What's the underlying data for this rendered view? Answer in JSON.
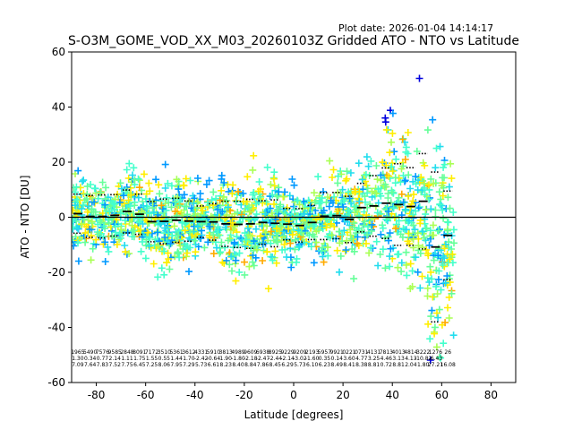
{
  "chart_data": {
    "type": "scatter",
    "title": "S-O3M_GOME_VOD_XX_M03_20260103Z Gridded ATO - NTO vs Latitude",
    "plot_date": "Plot date: 2026-01-04 14:14:17",
    "xlabel": "Latitude [degrees]",
    "ylabel": "ATO - NTO [DU]",
    "xlim": [
      -90,
      90
    ],
    "ylim": [
      -60,
      60
    ],
    "xticks": [
      -80,
      -60,
      -40,
      -20,
      0,
      20,
      40,
      60,
      80
    ],
    "yticks": [
      -60,
      -40,
      -20,
      0,
      20,
      40,
      60
    ],
    "zero_line": 0,
    "colors": {
      "blue": "#0000dd",
      "deep_sky": "#0099ff",
      "cyan": "#22ddee",
      "aqua": "#44ffcc",
      "mint": "#66ff99",
      "lime": "#aaff55",
      "yellow": "#ffee00",
      "orange": "#ffaa00"
    },
    "bin_lats": [
      -87.5,
      -82.5,
      -77.5,
      -72.5,
      -67.5,
      -62.5,
      -57.5,
      -52.5,
      -47.5,
      -42.5,
      -37.5,
      -32.5,
      -27.5,
      -22.5,
      -17.5,
      -12.5,
      -7.5,
      -2.5,
      2.5,
      7.5,
      12.5,
      17.5,
      22.5,
      27.5,
      32.5,
      37.5,
      42.5,
      47.5,
      52.5,
      57.5,
      62.5
    ],
    "mean_offset": [
      1.3,
      0.3,
      0.3,
      0.7,
      2.1,
      1.1,
      -1.6,
      -1.5,
      -1.1,
      -1.4,
      -1.6,
      -1.7,
      -2.4,
      -2.6,
      -2.4,
      -1.9,
      -2.2,
      -2.5,
      -3.0,
      -1.9,
      0.4,
      0.6,
      -0.8,
      3.5,
      4.1,
      5.1,
      4.6,
      3.9,
      5.8,
      -10.8,
      -6.6
    ],
    "std_dev": [
      7.1,
      7.6,
      7.8,
      7.5,
      7.8,
      7.3,
      7.3,
      8.1,
      8.0,
      7.3,
      5.7,
      6.6,
      8.2,
      8.4,
      8.9,
      7.9,
      8.5,
      5.7,
      6.1,
      6.2,
      8.5,
      8.4,
      8.4,
      8.8,
      11.0,
      12.8,
      14.8,
      14.1,
      17.3,
      27.2,
      16.1
    ],
    "stat_row1": [
      "1965",
      "5490",
      "7576",
      "9585",
      "2848",
      "8091",
      "7172",
      "3510",
      "5361",
      "3612",
      "4331",
      "5910",
      "3813",
      "4989",
      "9609",
      "6938",
      "8925",
      "9229",
      "9209",
      "2193",
      "5957",
      "9921",
      "0221",
      "0731",
      "4131",
      "7813",
      "4013",
      "4814",
      "3222",
      "1276",
      "26"
    ],
    "stat_row2": [
      "1.30",
      "0.34",
      "0.77",
      "2.14",
      "1.11",
      "1.75",
      "1.55",
      "0.55",
      "1.44",
      "1.70",
      "-2.42",
      "-0.64",
      "1.90",
      "-1.80",
      "-2.18",
      "-2.47",
      "-2.44",
      "-2.14",
      "-3.02",
      "-1.60",
      "0.35",
      "0.14",
      "3.60",
      "4.77",
      "3.25",
      "4.46",
      "3.13",
      "4.13",
      "-10.82",
      "-6.43",
      ""
    ],
    "stat_row3": [
      "7.09",
      "7.64",
      "7.83",
      "7.52",
      "7.75",
      "6.45",
      "7.25",
      "8.06",
      "7.95",
      "7.29",
      "5.73",
      "6.61",
      "8.23",
      "8.40",
      "8.84",
      "7.86",
      "8.45",
      "6.29",
      "5.73",
      "6.10",
      "6.23",
      "8.49",
      "8.41",
      "8.38",
      "8.81",
      "0.72",
      "8.81",
      "2.04",
      "1.80",
      "27.21",
      "16.08"
    ]
  }
}
